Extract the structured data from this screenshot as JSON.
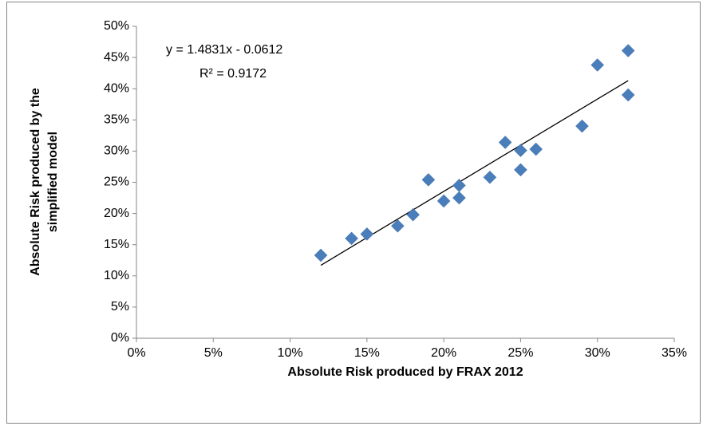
{
  "chart_data": {
    "type": "scatter",
    "x_label": "Absolute Risk produced by FRAX 2012",
    "y_label": [
      "Absolute Risk produced by the",
      "simplified model"
    ],
    "annotations": [
      "y = 1.4831x - 0.0612",
      "R² = 0.9172"
    ],
    "color": "#4a7ebb",
    "x": [
      12,
      14,
      15,
      17,
      18,
      19,
      20,
      21,
      21,
      23,
      24,
      25,
      25,
      26,
      29,
      30,
      32,
      32
    ],
    "values": [
      13.3,
      16.0,
      16.7,
      18.0,
      19.8,
      25.4,
      22.0,
      24.5,
      22.5,
      25.8,
      31.4,
      30.1,
      27.0,
      30.3,
      34.0,
      43.8,
      46.1,
      39.0
    ],
    "trendline": {
      "x": [
        12,
        32
      ],
      "values": [
        11.7,
        41.3
      ]
    },
    "xlim": [
      0,
      35
    ],
    "xticks": [
      {
        "value": 0,
        "label": "0%"
      },
      {
        "value": 5,
        "label": "5%"
      },
      {
        "value": 10,
        "label": "10%"
      },
      {
        "value": 15,
        "label": "15%"
      },
      {
        "value": 20,
        "label": "20%"
      },
      {
        "value": 25,
        "label": "25%"
      },
      {
        "value": 30,
        "label": "30%"
      },
      {
        "value": 35,
        "label": "35%"
      }
    ],
    "ylim": [
      0,
      50
    ],
    "yticks": [
      {
        "value": 0,
        "label": "0%"
      },
      {
        "value": 5,
        "label": "5%"
      },
      {
        "value": 10,
        "label": "10%"
      },
      {
        "value": 15,
        "label": "15%"
      },
      {
        "value": 20,
        "label": "20%"
      },
      {
        "value": 25,
        "label": "25%"
      },
      {
        "value": 30,
        "label": "30%"
      },
      {
        "value": 35,
        "label": "35%"
      },
      {
        "value": 40,
        "label": "40%"
      },
      {
        "value": 45,
        "label": "45%"
      },
      {
        "value": 50,
        "label": "50%"
      }
    ]
  }
}
